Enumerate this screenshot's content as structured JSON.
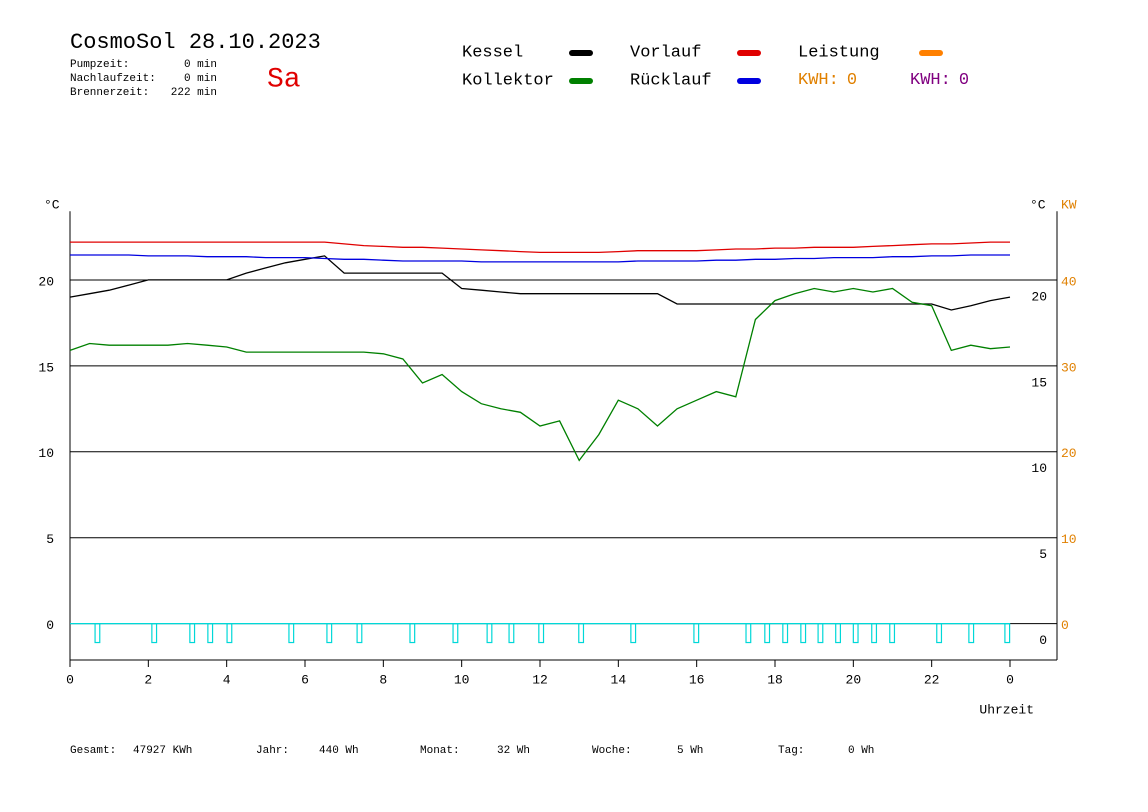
{
  "header": {
    "title": "CosmoSol 28.10.2023",
    "weekday": "Sa",
    "stats": [
      {
        "label": "Pumpzeit:",
        "value": "0 min"
      },
      {
        "label": "Nachlaufzeit:",
        "value": "0 min"
      },
      {
        "label": "Brennerzeit:",
        "value": "222 min"
      }
    ]
  },
  "kwh": [
    {
      "label": "KWH:",
      "value": 0,
      "color": "#e08000"
    },
    {
      "label": "KWH:",
      "value": 0,
      "color": "#800080"
    }
  ],
  "footer": [
    {
      "label": "Gesamt:",
      "value": "47927 KWh"
    },
    {
      "label": "Jahr:",
      "value": "440 Wh"
    },
    {
      "label": "Monat:",
      "value": "32 Wh"
    },
    {
      "label": "Woche:",
      "value": "5 Wh"
    },
    {
      "label": "Tag:",
      "value": "0 Wh"
    }
  ],
  "chart_data": {
    "type": "line",
    "y_unit": "°C",
    "y2_unit": "°C",
    "y3_unit": "KW",
    "x_label": "Uhrzeit",
    "xlim": [
      0,
      25.2
    ],
    "xticks": [
      0,
      2,
      4,
      6,
      8,
      10,
      12,
      14,
      16,
      18,
      20,
      22,
      {
        "value": 24,
        "label": "0"
      }
    ],
    "ylim": [
      -2,
      24
    ],
    "yticks": [
      0,
      5,
      10,
      15,
      20
    ],
    "y2lim": [
      -4,
      48
    ],
    "y2ticks": [
      0,
      10,
      20,
      30,
      40
    ],
    "x": [
      0,
      0.5,
      1,
      1.5,
      2,
      2.5,
      3,
      3.5,
      4,
      4.5,
      5,
      5.5,
      6,
      6.5,
      7,
      7.5,
      8,
      8.5,
      9,
      9.5,
      10,
      10.5,
      11,
      11.5,
      12,
      12.5,
      13,
      13.5,
      14,
      14.5,
      15,
      15.5,
      16,
      16.5,
      17,
      17.5,
      18,
      18.5,
      19,
      19.5,
      20,
      20.5,
      21,
      21.5,
      22,
      22.5,
      23,
      23.5,
      24
    ],
    "series": [
      {
        "name": "Kessel",
        "color": "#000000",
        "values": [
          19.0,
          19.2,
          19.4,
          19.7,
          20.0,
          20.0,
          20.0,
          20.0,
          20.0,
          20.4,
          20.7,
          21.0,
          21.2,
          21.4,
          20.4,
          20.4,
          20.4,
          20.4,
          20.4,
          20.4,
          19.5,
          19.4,
          19.3,
          19.2,
          19.2,
          19.2,
          19.2,
          19.2,
          19.2,
          19.2,
          19.2,
          18.6,
          18.6,
          18.6,
          18.6,
          18.6,
          18.6,
          18.6,
          18.6,
          18.6,
          18.6,
          18.6,
          18.6,
          18.6,
          18.6,
          18.25,
          18.5,
          18.8,
          19.0
        ]
      },
      {
        "name": "Kollektor",
        "color": "#008000",
        "values": [
          15.9,
          16.3,
          16.2,
          16.2,
          16.2,
          16.2,
          16.3,
          16.2,
          16.1,
          15.8,
          15.8,
          15.8,
          15.8,
          15.8,
          15.8,
          15.8,
          15.7,
          15.4,
          14.0,
          14.5,
          13.5,
          12.8,
          12.5,
          12.3,
          11.5,
          11.8,
          9.5,
          11.0,
          13.0,
          12.5,
          11.5,
          12.5,
          13.0,
          13.5,
          13.2,
          17.7,
          18.8,
          19.2,
          19.5,
          19.3,
          19.5,
          19.3,
          19.5,
          18.7,
          18.5,
          15.9,
          16.2,
          16.0,
          16.1
        ]
      },
      {
        "name": "Vorlauf",
        "color": "#e00000",
        "values": [
          22.2,
          22.2,
          22.2,
          22.2,
          22.2,
          22.2,
          22.2,
          22.2,
          22.2,
          22.2,
          22.2,
          22.2,
          22.2,
          22.2,
          22.1,
          22.0,
          21.95,
          21.9,
          21.9,
          21.85,
          21.8,
          21.75,
          21.7,
          21.65,
          21.6,
          21.6,
          21.6,
          21.6,
          21.65,
          21.7,
          21.7,
          21.7,
          21.7,
          21.75,
          21.8,
          21.8,
          21.85,
          21.85,
          21.9,
          21.9,
          21.9,
          21.95,
          22.0,
          22.05,
          22.1,
          22.1,
          22.15,
          22.2,
          22.2
        ]
      },
      {
        "name": "Rücklauf",
        "color": "#0000e0",
        "values": [
          21.45,
          21.45,
          21.45,
          21.45,
          21.4,
          21.4,
          21.4,
          21.35,
          21.35,
          21.35,
          21.3,
          21.3,
          21.3,
          21.25,
          21.2,
          21.2,
          21.15,
          21.1,
          21.1,
          21.1,
          21.1,
          21.05,
          21.05,
          21.05,
          21.05,
          21.05,
          21.05,
          21.05,
          21.05,
          21.1,
          21.1,
          21.1,
          21.1,
          21.15,
          21.15,
          21.2,
          21.2,
          21.25,
          21.25,
          21.3,
          21.3,
          21.3,
          21.35,
          21.35,
          21.4,
          21.4,
          21.45,
          21.45,
          21.45
        ]
      },
      {
        "name": "Leistung",
        "color": "#ff8000",
        "axis": "y2"
      }
    ],
    "pump": {
      "color": "#00d8d8",
      "level": 0,
      "low": -1.1,
      "on": [
        0.64,
        2.09,
        3.06,
        3.52,
        4.01,
        5.59,
        6.56,
        7.33,
        8.68,
        9.78,
        10.65,
        11.21,
        11.97,
        12.99,
        14.32,
        15.93,
        17.26,
        17.74,
        18.2,
        18.66,
        19.1,
        19.55,
        20.0,
        20.47,
        20.93,
        22.13,
        22.95,
        23.87
      ]
    }
  }
}
